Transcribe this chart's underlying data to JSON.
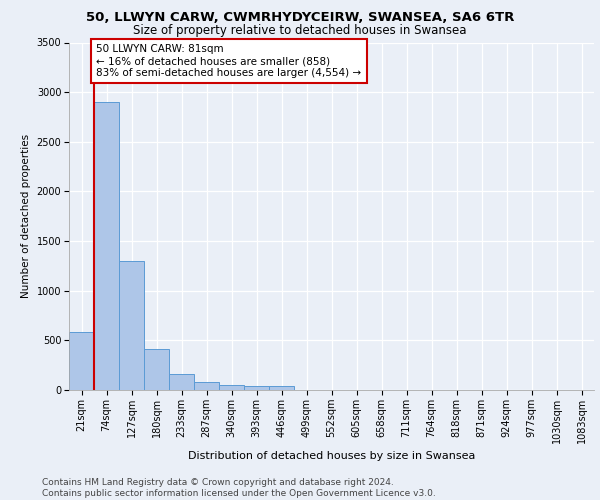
{
  "title1": "50, LLWYN CARW, CWMRHYDYCEIRW, SWANSEA, SA6 6TR",
  "title2": "Size of property relative to detached houses in Swansea",
  "xlabel": "Distribution of detached houses by size in Swansea",
  "ylabel": "Number of detached properties",
  "categories": [
    "21sqm",
    "74sqm",
    "127sqm",
    "180sqm",
    "233sqm",
    "287sqm",
    "340sqm",
    "393sqm",
    "446sqm",
    "499sqm",
    "552sqm",
    "605sqm",
    "658sqm",
    "711sqm",
    "764sqm",
    "818sqm",
    "871sqm",
    "924sqm",
    "977sqm",
    "1030sqm",
    "1083sqm"
  ],
  "values": [
    580,
    2900,
    1300,
    415,
    160,
    80,
    50,
    45,
    40,
    0,
    0,
    0,
    0,
    0,
    0,
    0,
    0,
    0,
    0,
    0,
    0
  ],
  "bar_color": "#aec6e8",
  "bar_edge_color": "#5b9bd5",
  "property_line_color": "#cc0000",
  "annotation_text": "50 LLWYN CARW: 81sqm\n← 16% of detached houses are smaller (858)\n83% of semi-detached houses are larger (4,554) →",
  "annotation_box_color": "#ffffff",
  "annotation_box_edge": "#cc0000",
  "ylim": [
    0,
    3500
  ],
  "yticks": [
    0,
    500,
    1000,
    1500,
    2000,
    2500,
    3000,
    3500
  ],
  "bg_color": "#eaeff7",
  "grid_color": "#ffffff",
  "footer": "Contains HM Land Registry data © Crown copyright and database right 2024.\nContains public sector information licensed under the Open Government Licence v3.0.",
  "title1_fontsize": 9.5,
  "title2_fontsize": 8.5,
  "xlabel_fontsize": 8,
  "ylabel_fontsize": 7.5,
  "tick_fontsize": 7,
  "annotation_fontsize": 7.5,
  "footer_fontsize": 6.5
}
